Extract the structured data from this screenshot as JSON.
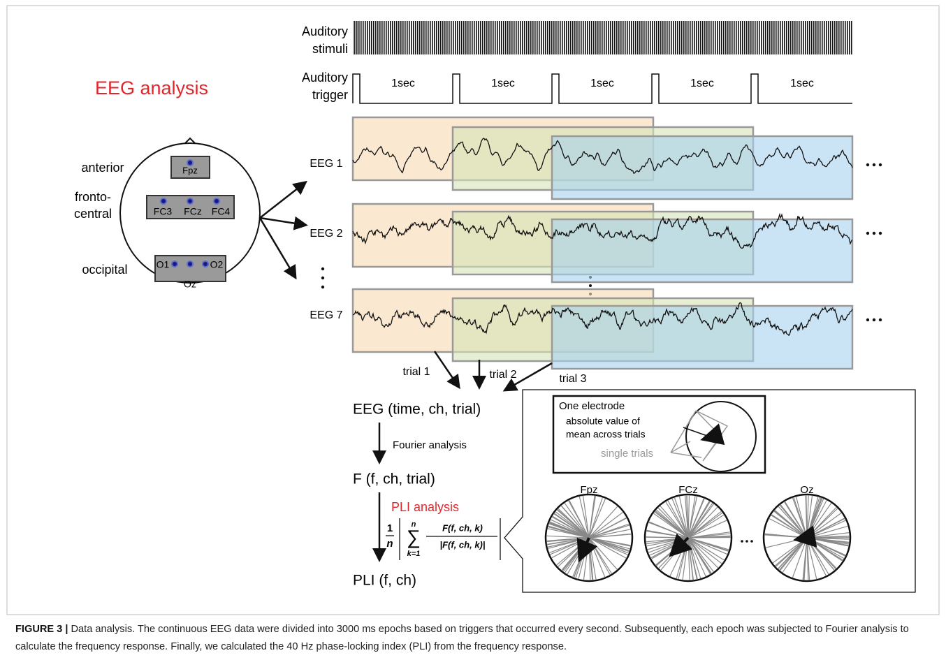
{
  "title": "EEG analysis",
  "stimuli": {
    "label_lines": [
      "Auditory",
      "stimuli"
    ]
  },
  "trigger": {
    "label_lines": [
      "Auditory",
      "trigger"
    ],
    "intervals": [
      "1sec",
      "1sec",
      "1sec",
      "1sec",
      "1sec"
    ]
  },
  "head": {
    "regions": [
      "anterior",
      "fronto-",
      "central",
      "occipital"
    ],
    "electrodes": [
      "Fpz",
      "FC3",
      "FCz",
      "FC4",
      "O1",
      "O2",
      "Oz"
    ]
  },
  "channels": [
    "EEG 1",
    "EEG 2",
    "EEG 7"
  ],
  "trials": [
    "trial 1",
    "trial 2",
    "trial 3"
  ],
  "pipeline": [
    "EEG (time, ch, trial)",
    "Fourier analysis",
    "F (f, ch, trial)",
    "PLI analysis",
    "PLI (f, ch)"
  ],
  "formula": {
    "coefficient_num": "1",
    "coefficient_den": "n",
    "sum": "∑",
    "upper": "n",
    "lower": "k=1",
    "numerator": "F(f, ch, k)",
    "denominator": "|F(f, ch, k)|"
  },
  "inset": {
    "title": "One electrode",
    "mean_lines": [
      "absolute value of",
      "mean across trials"
    ],
    "single": "single trials",
    "electrodes": [
      "Fpz",
      "FCz",
      "Oz"
    ]
  },
  "caption": {
    "label": "FIGURE 3 |",
    "text": "Data analysis. The continuous EEG data were divided into 3000 ms epochs based on triggers that occurred every second. Subsequently, each epoch was subjected to Fourier analysis to calculate the frequency response. Finally, we calculated the 40 Hz phase-locking index (PLI) from the frequency response."
  }
}
